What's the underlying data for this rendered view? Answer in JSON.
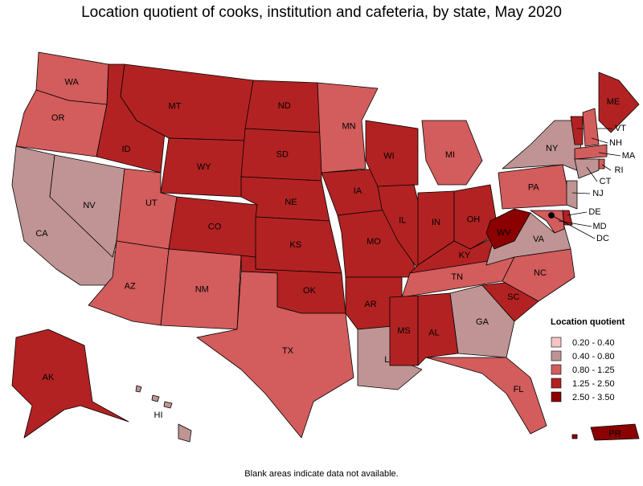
{
  "title": "Location quotient of cooks, institution and cafeteria, by state, May 2020",
  "footnote": "Blank areas indicate data not available.",
  "legend": {
    "title": "Location quotient",
    "items": [
      {
        "label": "0.20 - 0.40",
        "color": "#f5c4c4"
      },
      {
        "label": "0.40 - 0.80",
        "color": "#c09494"
      },
      {
        "label": "0.80 - 1.25",
        "color": "#d35c5c"
      },
      {
        "label": "1.25 - 2.50",
        "color": "#b22222"
      },
      {
        "label": "2.50 - 3.50",
        "color": "#8b0000"
      }
    ]
  },
  "states": [
    {
      "label": "WA",
      "color": "#d35c5c"
    },
    {
      "label": "OR",
      "color": "#d35c5c"
    },
    {
      "label": "CA",
      "color": "#c09494"
    },
    {
      "label": "NV",
      "color": "#c09494"
    },
    {
      "label": "ID",
      "color": "#b22222"
    },
    {
      "label": "MT",
      "color": "#b22222"
    },
    {
      "label": "WY",
      "color": "#b22222"
    },
    {
      "label": "UT",
      "color": "#d35c5c"
    },
    {
      "label": "AZ",
      "color": "#d35c5c"
    },
    {
      "label": "CO",
      "color": "#b22222"
    },
    {
      "label": "NM",
      "color": "#d35c5c"
    },
    {
      "label": "ND",
      "color": "#b22222"
    },
    {
      "label": "SD",
      "color": "#b22222"
    },
    {
      "label": "NE",
      "color": "#b22222"
    },
    {
      "label": "KS",
      "color": "#b22222"
    },
    {
      "label": "OK",
      "color": "#b22222"
    },
    {
      "label": "TX",
      "color": "#d35c5c"
    },
    {
      "label": "MN",
      "color": "#d35c5c"
    },
    {
      "label": "IA",
      "color": "#b22222"
    },
    {
      "label": "MO",
      "color": "#b22222"
    },
    {
      "label": "AR",
      "color": "#b22222"
    },
    {
      "label": "LA",
      "color": "#c09494"
    },
    {
      "label": "WI",
      "color": "#b22222"
    },
    {
      "label": "IL",
      "color": "#b22222"
    },
    {
      "label": "MI",
      "color": "#d35c5c"
    },
    {
      "label": "IN",
      "color": "#b22222"
    },
    {
      "label": "OH",
      "color": "#b22222"
    },
    {
      "label": "KY",
      "color": "#b22222"
    },
    {
      "label": "TN",
      "color": "#d35c5c"
    },
    {
      "label": "MS",
      "color": "#b22222"
    },
    {
      "label": "AL",
      "color": "#b22222"
    },
    {
      "label": "GA",
      "color": "#c09494"
    },
    {
      "label": "FL",
      "color": "#d35c5c"
    },
    {
      "label": "SC",
      "color": "#b22222"
    },
    {
      "label": "NC",
      "color": "#d35c5c"
    },
    {
      "label": "VA",
      "color": "#c09494"
    },
    {
      "label": "WV",
      "color": "#8b0000"
    },
    {
      "label": "PA",
      "color": "#d35c5c"
    },
    {
      "label": "NY",
      "color": "#c09494"
    },
    {
      "label": "ME",
      "color": "#b22222"
    },
    {
      "label": "VT",
      "color": "#b22222"
    },
    {
      "label": "NH",
      "color": "#d35c5c"
    },
    {
      "label": "MA",
      "color": "#d35c5c"
    },
    {
      "label": "RI",
      "color": "#d35c5c"
    },
    {
      "label": "CT",
      "color": "#c09494"
    },
    {
      "label": "NJ",
      "color": "#c09494"
    },
    {
      "label": "DE",
      "color": "#b22222"
    },
    {
      "label": "MD",
      "color": "#d35c5c"
    },
    {
      "label": "DC",
      "color": "#000000"
    },
    {
      "label": "AK",
      "color": "#b22222"
    },
    {
      "label": "HI",
      "color": "#c09494"
    },
    {
      "label": "PR",
      "color": "#8b0000"
    }
  ]
}
